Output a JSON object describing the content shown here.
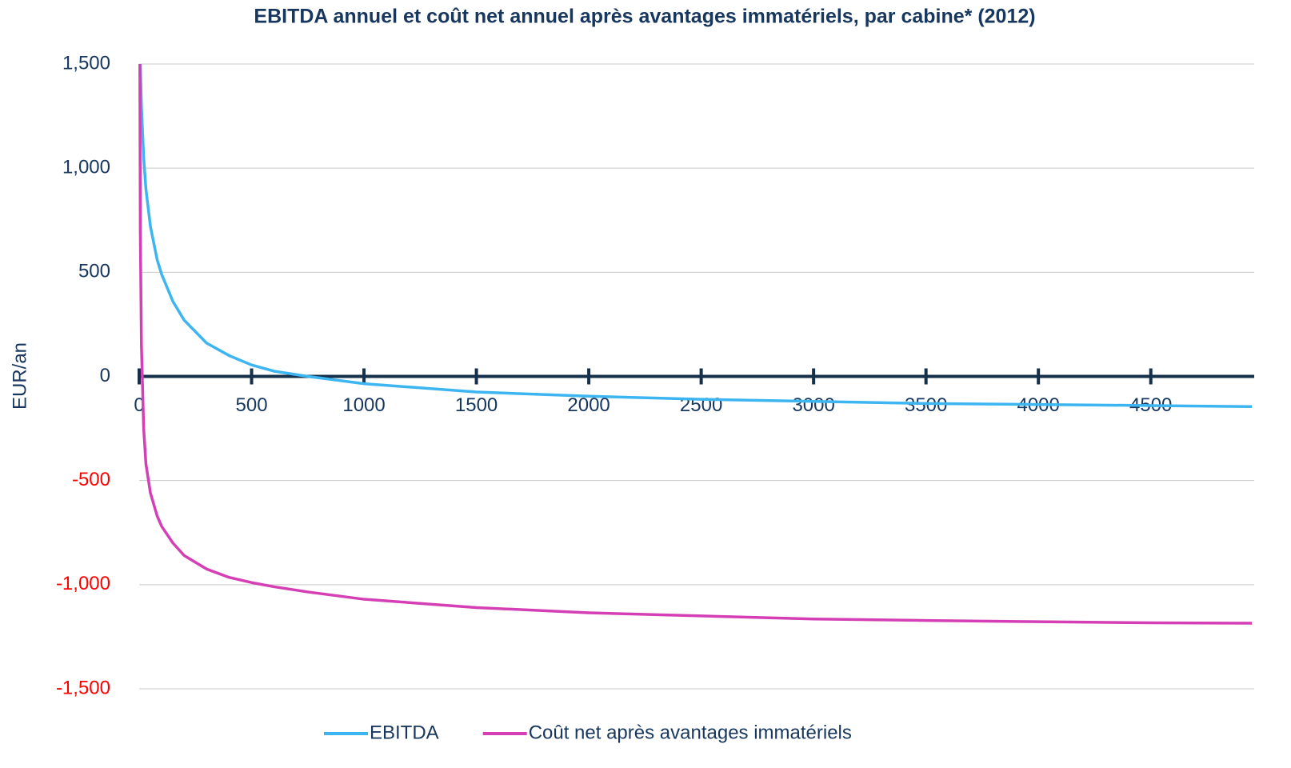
{
  "chart_data": {
    "type": "line",
    "title": "EBITDA annuel et coût net annuel après avantages immatériels, par cabine* (2012)",
    "y_label": "EUR/an",
    "x": [
      3,
      5,
      10,
      20,
      30,
      50,
      80,
      100,
      150,
      200,
      300,
      400,
      500,
      600,
      750,
      1000,
      1500,
      2000,
      2500,
      3000,
      3500,
      4000,
      4500,
      4950
    ],
    "series": [
      {
        "name": "EBITDA",
        "color": "#3db5f0",
        "values": [
          null,
          1500,
          1300,
          1050,
          900,
          720,
          560,
          490,
          360,
          270,
          160,
          100,
          55,
          25,
          0,
          -35,
          -75,
          -95,
          -110,
          -120,
          -130,
          -135,
          -140,
          -145
        ]
      },
      {
        "name": "Coût net après avantages immatériels",
        "color": "#d43fb5",
        "values": [
          1500,
          700,
          150,
          -250,
          -420,
          -560,
          -670,
          -720,
          -800,
          -860,
          -925,
          -965,
          -990,
          -1010,
          -1035,
          -1070,
          -1110,
          -1135,
          -1150,
          -1165,
          -1172,
          -1178,
          -1183,
          -1185
        ]
      }
    ],
    "xlim": [
      0,
      4960
    ],
    "xticks": [
      0,
      500,
      1000,
      1500,
      2000,
      2500,
      3000,
      3500,
      4000,
      4500
    ],
    "ylim": [
      -1500,
      1500
    ],
    "yticks": [
      {
        "value": -1500,
        "label": "-1,500"
      },
      {
        "value": -1000,
        "label": "-1,000"
      },
      -500,
      0,
      500,
      {
        "value": 1000,
        "label": "1,000"
      },
      {
        "value": 1500,
        "label": "1,500"
      }
    ],
    "negative_tick_color": "#ff0000",
    "grid": true,
    "legend": "bottom"
  }
}
